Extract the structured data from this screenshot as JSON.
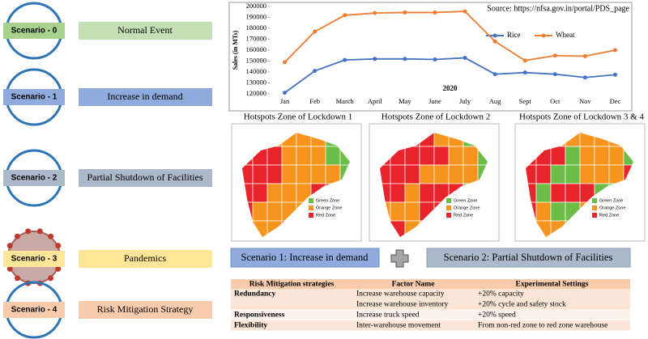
{
  "scenarios": [
    {
      "label": "Scenario - 0",
      "description": "Normal Event"
    },
    {
      "label": "Scenario - 1",
      "description": "Increase in demand"
    },
    {
      "label": "Scenario - 2",
      "description": "Partial Shutdown of Facilities"
    },
    {
      "label": "Scenario - 3",
      "description": "Pandemics"
    },
    {
      "label": "Scenario - 4",
      "description": "Risk Mitigation Strategy"
    }
  ],
  "chart_data": {
    "type": "line",
    "source": "Source: https://nfsa.gov.in/portal/PDS_page",
    "y_label": "Sales (in MTs)",
    "x_label": "2020",
    "categories": [
      "Jan",
      "Feb",
      "March",
      "April",
      "May",
      "June",
      "July",
      "Aug",
      "Sept",
      "Oct",
      "Nov",
      "Dec"
    ],
    "series": [
      {
        "name": "Rice",
        "color": "#4472c4",
        "values": [
          121000,
          141000,
          151000,
          152000,
          152000,
          151500,
          153000,
          138000,
          139500,
          138000,
          135000,
          137500
        ]
      },
      {
        "name": "Wheat",
        "color": "#ed7d31",
        "values": [
          149000,
          177000,
          192000,
          194000,
          194500,
          194500,
          195500,
          168000,
          150500,
          155000,
          154500,
          160000
        ]
      }
    ],
    "ylim": [
      120000,
      200000
    ],
    "yticks": [
      120000,
      130000,
      140000,
      150000,
      160000,
      170000,
      180000,
      190000,
      200000
    ],
    "grid": false
  },
  "maps": {
    "titles": [
      "Hotspots Zone of Lockdown 1",
      "Hotspots Zone of Lockdown 2",
      "Hotspots Zone of Lockdown 3 & 4"
    ],
    "legend": [
      "Green Zone",
      "Orange Zone",
      "Red Zone"
    ]
  },
  "scenario_boxes": [
    "Scenario 1: Increase in demand",
    "Scenario 2: Partial Shutdown of Facilities"
  ],
  "table": {
    "header": [
      "Risk Mitigation strategies",
      "Factor Name",
      "Experimental Settings"
    ],
    "rows": [
      {
        "strategy": "Redundancy",
        "factors": [
          {
            "name": "Increase warehouse capacity",
            "setting": "+20% capacity"
          },
          {
            "name": "Increase warehouse inventory",
            "setting": "+20% cycle and safety stock"
          }
        ]
      },
      {
        "strategy": "Responsiveness",
        "factors": [
          {
            "name": "Increase truck speed",
            "setting": "+20% speed"
          }
        ]
      },
      {
        "strategy": "Flexibility",
        "factors": [
          {
            "name": "Inter-warehouse movement",
            "setting": "From non-red zone to red zone warehouse"
          }
        ]
      }
    ]
  }
}
